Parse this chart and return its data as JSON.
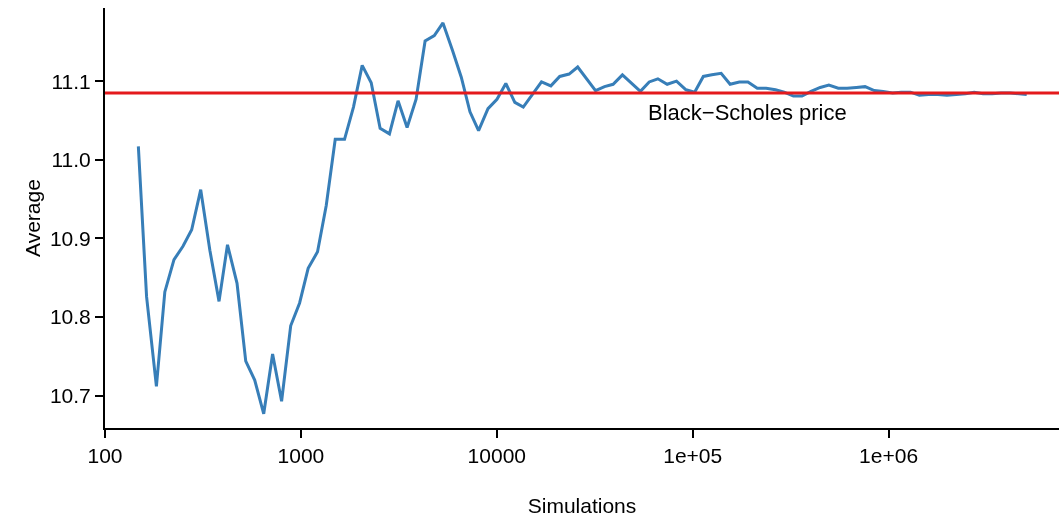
{
  "chart_data": {
    "type": "line",
    "xlabel": "Simulations",
    "ylabel": "Average",
    "log": "x",
    "grid": false,
    "marker": "none",
    "line_style": "solid",
    "xlim": [
      100,
      7410000
    ],
    "xticks": [
      100,
      1000,
      10000,
      {
        "value": 100000,
        "label": "1e+05"
      },
      {
        "value": 1000000,
        "label": "1e+06"
      }
    ],
    "ylim": [
      10.659,
      11.193
    ],
    "yticks": [
      10.7,
      10.8,
      10.9,
      {
        "value": 11,
        "label": "11.0"
      },
      11.1
    ],
    "ref_lines": [
      {
        "axis": "y",
        "value": 11.085,
        "label": "Black−Scholes price",
        "color": "#e41a1c",
        "line_style": "solid"
      }
    ],
    "x": [
      148,
      163,
      183,
      202,
      225,
      250,
      277,
      308,
      343,
      382,
      422,
      472,
      523,
      581,
      646,
      717,
      797,
      887,
      985,
      1089,
      1216,
      1347,
      1497,
      1670,
      1855,
      2055,
      2285,
      2537,
      2831,
      3133,
      3484,
      3873,
      4305,
      4797,
      5311,
      5943,
      6587,
      7295,
      8072,
      9016,
      10020,
      11120,
      12360,
      13650,
      16910,
      18880,
      20950,
      23390,
      25880,
      31920,
      35480,
      39240,
      43770,
      54080,
      59980,
      66400,
      74090,
      82670,
      92420,
      102300,
      113300,
      125300,
      139700,
      155200,
      173000,
      191400,
      213600,
      237100,
      264600,
      293000,
      326700,
      361400,
      401600,
      447700,
      495500,
      553500,
      614100,
      684500,
      758300,
      845100,
      937600,
      1047000,
      1159000,
      1294000,
      1436000,
      1600000,
      1786000,
      1985000,
      2214000,
      2468000,
      2735000,
      3034000,
      3381000,
      3748000,
      4178000,
      4634000,
      5070000
    ],
    "series": [
      {
        "color": "#377eb8",
        "values": [
          11.017,
          10.826,
          10.712,
          10.832,
          10.873,
          10.89,
          10.911,
          10.962,
          10.885,
          10.82,
          10.892,
          10.843,
          10.744,
          10.72,
          10.677,
          10.753,
          10.693,
          10.789,
          10.818,
          10.862,
          10.883,
          10.942,
          11.026,
          11.026,
          11.067,
          11.12,
          11.098,
          11.04,
          11.033,
          11.075,
          11.041,
          11.077,
          11.151,
          11.158,
          11.174,
          11.139,
          11.105,
          11.061,
          11.037,
          11.065,
          11.077,
          11.097,
          11.073,
          11.067,
          11.099,
          11.094,
          11.106,
          11.109,
          11.118,
          11.088,
          11.093,
          11.096,
          11.108,
          11.087,
          11.099,
          11.103,
          11.096,
          11.1,
          11.089,
          11.086,
          11.106,
          11.108,
          11.11,
          11.096,
          11.099,
          11.099,
          11.091,
          11.091,
          11.089,
          11.086,
          11.081,
          11.081,
          11.087,
          11.092,
          11.095,
          11.091,
          11.091,
          11.092,
          11.093,
          11.088,
          11.087,
          11.085,
          11.086,
          11.086,
          11.082,
          11.083,
          11.083,
          11.082,
          11.083,
          11.084,
          11.086,
          11.084,
          11.084,
          11.085,
          11.085,
          11.084,
          11.083
        ]
      }
    ]
  }
}
